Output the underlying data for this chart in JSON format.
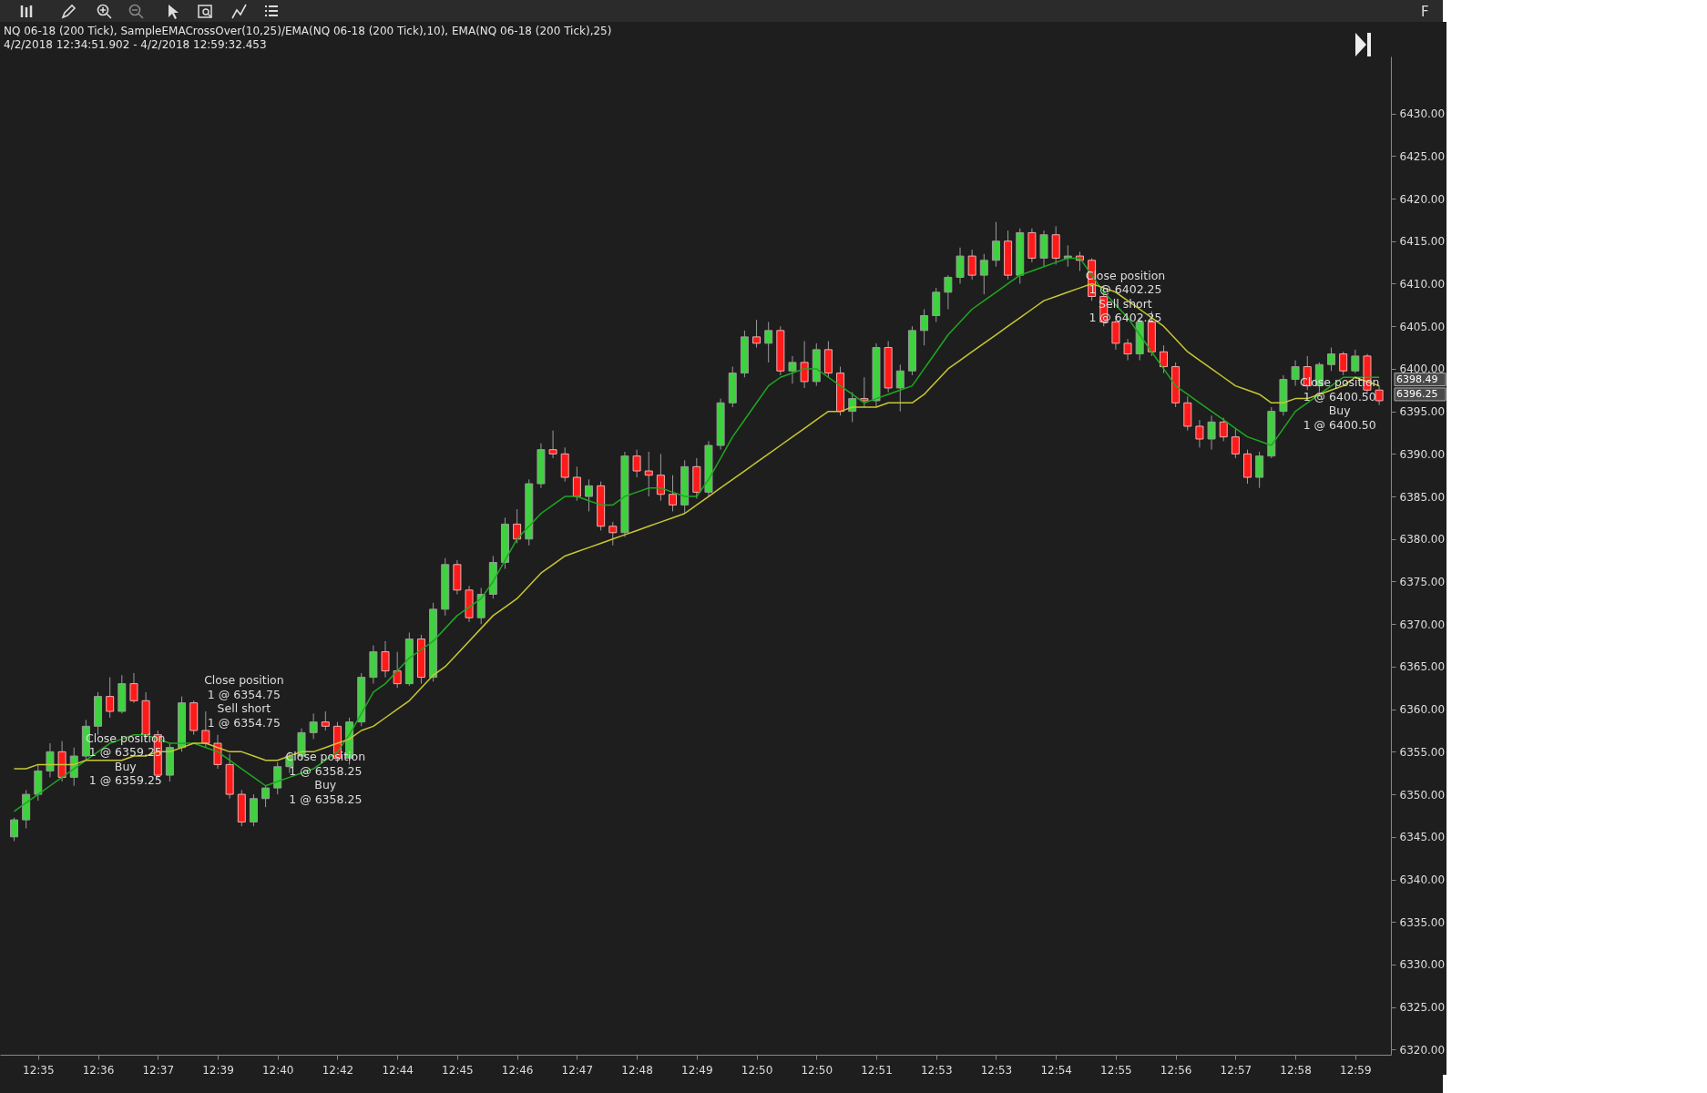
{
  "chart_data": {
    "type": "candlestick",
    "title": "NQ 06-18 (200 Tick), SampleEMACrossOver(10,25)/EMA(NQ 06-18 (200 Tick),10), EMA(NQ 06-18 (200 Tick),25)",
    "subtitle": "4/2/2018 12:34:51.902 - 4/2/2018 12:59:32.453",
    "categories": [
      null,
      null,
      "12:35",
      null,
      null,
      null,
      null,
      "12:36",
      null,
      null,
      null,
      null,
      "12:37",
      null,
      null,
      null,
      null,
      "12:39",
      null,
      null,
      null,
      null,
      "12:40",
      null,
      null,
      null,
      null,
      "12:42",
      null,
      null,
      null,
      null,
      "12:44",
      null,
      null,
      null,
      null,
      "12:45",
      null,
      null,
      null,
      null,
      "12:46",
      null,
      null,
      null,
      null,
      "12:47",
      null,
      null,
      null,
      null,
      "12:48",
      null,
      null,
      null,
      null,
      "12:49",
      null,
      null,
      null,
      null,
      "12:50",
      null,
      null,
      null,
      null,
      "12:50",
      null,
      null,
      null,
      null,
      "12:51",
      null,
      null,
      null,
      null,
      "12:53",
      null,
      null,
      null,
      null,
      "12:53",
      null,
      null,
      null,
      null,
      "12:54",
      null,
      null,
      null,
      null,
      "12:55",
      null,
      null,
      null,
      null,
      "12:56",
      null,
      null,
      null,
      null,
      "12:57",
      null,
      null,
      null,
      null,
      "12:58",
      null,
      null,
      null,
      null,
      "12:59",
      null,
      null
    ],
    "ohlc": [
      [
        6345.0,
        6347.25,
        6344.5,
        6347.0
      ],
      [
        6347.0,
        6350.5,
        6346.0,
        6350.0
      ],
      [
        6350.0,
        6353.5,
        6349.25,
        6352.75
      ],
      [
        6352.75,
        6356.0,
        6352.0,
        6355.0
      ],
      [
        6355.0,
        6356.25,
        6351.5,
        6352.0
      ],
      [
        6352.0,
        6355.5,
        6351.0,
        6354.5
      ],
      [
        6354.5,
        6358.75,
        6354.0,
        6358.0
      ],
      [
        6358.0,
        6362.0,
        6357.0,
        6361.5
      ],
      [
        6361.5,
        6363.75,
        6359.0,
        6359.75
      ],
      [
        6359.75,
        6364.0,
        6359.5,
        6363.0
      ],
      [
        6363.0,
        6364.25,
        6360.75,
        6361.0
      ],
      [
        6361.0,
        6362.0,
        6356.5,
        6357.0
      ],
      [
        6357.0,
        6357.5,
        6351.75,
        6352.25
      ],
      [
        6352.25,
        6356.0,
        6351.5,
        6355.5
      ],
      [
        6355.5,
        6361.5,
        6355.0,
        6360.75
      ],
      [
        6360.75,
        6361.0,
        6357.0,
        6357.5
      ],
      [
        6357.5,
        6359.75,
        6355.5,
        6356.0
      ],
      [
        6356.0,
        6357.0,
        6353.0,
        6353.5
      ],
      [
        6353.5,
        6354.75,
        6349.5,
        6350.0
      ],
      [
        6350.0,
        6350.5,
        6346.25,
        6346.75
      ],
      [
        6346.75,
        6350.0,
        6346.25,
        6349.5
      ],
      [
        6349.5,
        6351.0,
        6348.5,
        6350.75
      ],
      [
        6350.75,
        6353.75,
        6350.0,
        6353.25
      ],
      [
        6353.25,
        6355.0,
        6352.5,
        6354.5
      ],
      [
        6354.5,
        6357.75,
        6354.0,
        6357.25
      ],
      [
        6357.25,
        6359.5,
        6356.5,
        6358.5
      ],
      [
        6358.5,
        6359.75,
        6357.5,
        6358.0
      ],
      [
        6358.0,
        6358.5,
        6353.75,
        6354.25
      ],
      [
        6354.25,
        6359.0,
        6353.5,
        6358.5
      ],
      [
        6358.5,
        6364.25,
        6358.0,
        6363.75
      ],
      [
        6363.75,
        6367.5,
        6363.0,
        6366.75
      ],
      [
        6366.75,
        6368.0,
        6363.75,
        6364.5
      ],
      [
        6364.5,
        6366.75,
        6362.5,
        6363.0
      ],
      [
        6363.0,
        6369.0,
        6362.75,
        6368.25
      ],
      [
        6368.25,
        6368.75,
        6363.0,
        6363.75
      ],
      [
        6363.75,
        6372.5,
        6363.25,
        6371.75
      ],
      [
        6371.75,
        6377.75,
        6371.0,
        6377.0
      ],
      [
        6377.0,
        6377.5,
        6373.5,
        6374.0
      ],
      [
        6374.0,
        6374.5,
        6370.25,
        6370.75
      ],
      [
        6370.75,
        6374.25,
        6370.0,
        6373.5
      ],
      [
        6373.5,
        6378.0,
        6373.0,
        6377.25
      ],
      [
        6377.25,
        6382.5,
        6376.5,
        6381.75
      ],
      [
        6381.75,
        6383.5,
        6379.5,
        6380.0
      ],
      [
        6380.0,
        6387.0,
        6379.25,
        6386.5
      ],
      [
        6386.5,
        6391.25,
        6386.0,
        6390.5
      ],
      [
        6390.5,
        6392.75,
        6389.5,
        6390.0
      ],
      [
        6390.0,
        6390.75,
        6386.75,
        6387.25
      ],
      [
        6387.25,
        6388.5,
        6384.5,
        6385.0
      ],
      [
        6385.0,
        6387.0,
        6383.25,
        6386.25
      ],
      [
        6386.25,
        6386.75,
        6381.0,
        6381.5
      ],
      [
        6381.5,
        6382.0,
        6379.25,
        6380.75
      ],
      [
        6380.75,
        6390.25,
        6380.25,
        6389.75
      ],
      [
        6389.75,
        6390.5,
        6387.25,
        6388.0
      ],
      [
        6388.0,
        6390.25,
        6385.0,
        6387.5
      ],
      [
        6387.5,
        6390.0,
        6384.5,
        6385.25
      ],
      [
        6385.25,
        6387.5,
        6383.25,
        6384.0
      ],
      [
        6384.0,
        6389.25,
        6383.0,
        6388.5
      ],
      [
        6388.5,
        6389.5,
        6384.75,
        6385.5
      ],
      [
        6385.5,
        6391.5,
        6385.0,
        6391.0
      ],
      [
        6391.0,
        6396.5,
        6390.5,
        6396.0
      ],
      [
        6396.0,
        6400.25,
        6395.5,
        6399.5
      ],
      [
        6399.5,
        6404.5,
        6399.0,
        6403.75
      ],
      [
        6403.75,
        6405.75,
        6402.5,
        6403.0
      ],
      [
        6403.0,
        6405.5,
        6400.75,
        6404.5
      ],
      [
        6404.5,
        6405.0,
        6399.25,
        6399.75
      ],
      [
        6399.75,
        6401.5,
        6398.25,
        6400.75
      ],
      [
        6400.75,
        6403.25,
        6397.75,
        6398.5
      ],
      [
        6398.5,
        6403.0,
        6398.0,
        6402.25
      ],
      [
        6402.25,
        6403.25,
        6399.0,
        6399.5
      ],
      [
        6399.5,
        6400.25,
        6394.5,
        6395.0
      ],
      [
        6395.0,
        6397.25,
        6393.75,
        6396.5
      ],
      [
        6396.5,
        6399.0,
        6395.5,
        6396.25
      ],
      [
        6396.25,
        6403.0,
        6395.5,
        6402.5
      ],
      [
        6402.5,
        6403.25,
        6397.25,
        6397.75
      ],
      [
        6397.75,
        6400.5,
        6395.0,
        6399.75
      ],
      [
        6399.75,
        6405.0,
        6399.25,
        6404.5
      ],
      [
        6404.5,
        6407.0,
        6402.75,
        6406.25
      ],
      [
        6406.25,
        6409.5,
        6405.5,
        6409.0
      ],
      [
        6409.0,
        6411.0,
        6407.0,
        6410.75
      ],
      [
        6410.75,
        6414.25,
        6410.0,
        6413.25
      ],
      [
        6413.25,
        6414.0,
        6410.5,
        6411.0
      ],
      [
        6411.0,
        6413.5,
        6408.75,
        6412.75
      ],
      [
        6412.75,
        6417.25,
        6412.0,
        6415.0
      ],
      [
        6415.0,
        6416.25,
        6410.5,
        6411.0
      ],
      [
        6411.0,
        6416.5,
        6410.0,
        6416.0
      ],
      [
        6416.0,
        6416.5,
        6412.5,
        6413.0
      ],
      [
        6413.0,
        6416.25,
        6412.0,
        6415.75
      ],
      [
        6415.75,
        6416.75,
        6412.25,
        6413.0
      ],
      [
        6413.0,
        6414.5,
        6412.0,
        6413.25
      ],
      [
        6413.25,
        6413.75,
        6411.5,
        6412.75
      ],
      [
        6412.75,
        6413.0,
        6408.0,
        6408.5
      ],
      [
        6408.5,
        6409.75,
        6405.0,
        6405.5
      ],
      [
        6405.5,
        6406.25,
        6402.25,
        6403.0
      ],
      [
        6403.0,
        6403.5,
        6401.0,
        6401.75
      ],
      [
        6401.75,
        6406.0,
        6401.0,
        6405.5
      ],
      [
        6405.5,
        6406.75,
        6401.5,
        6402.0
      ],
      [
        6402.0,
        6402.75,
        6399.5,
        6400.25
      ],
      [
        6400.25,
        6400.75,
        6395.5,
        6396.0
      ],
      [
        6396.0,
        6396.75,
        6392.75,
        6393.25
      ],
      [
        6393.25,
        6394.0,
        6390.75,
        6391.75
      ],
      [
        6391.75,
        6394.5,
        6390.5,
        6393.75
      ],
      [
        6393.75,
        6394.25,
        6391.5,
        6392.0
      ],
      [
        6392.0,
        6393.0,
        6389.5,
        6390.0
      ],
      [
        6390.0,
        6390.5,
        6386.5,
        6387.25
      ],
      [
        6387.25,
        6390.25,
        6386.0,
        6389.75
      ],
      [
        6389.75,
        6395.5,
        6389.5,
        6395.0
      ],
      [
        6395.0,
        6399.25,
        6394.5,
        6398.75
      ],
      [
        6398.75,
        6401.0,
        6398.0,
        6400.25
      ],
      [
        6400.25,
        6401.5,
        6397.5,
        6398.0
      ],
      [
        6398.0,
        6400.75,
        6397.25,
        6400.5
      ],
      [
        6400.5,
        6402.5,
        6399.75,
        6401.75
      ],
      [
        6401.75,
        6402.0,
        6399.25,
        6399.75
      ],
      [
        6399.75,
        6402.25,
        6399.5,
        6401.5
      ],
      [
        6401.5,
        6401.75,
        6397.0,
        6397.5
      ],
      [
        6397.5,
        6398.0,
        6395.75,
        6396.25
      ]
    ],
    "series": [
      {
        "type": "line",
        "color": "#1fa81f",
        "values": [
          6348,
          6349,
          6350,
          6351,
          6352,
          6353,
          6354,
          6355,
          6356,
          6356.5,
          6357,
          6357,
          6356.5,
          6356,
          6356,
          6356,
          6355.5,
          6355,
          6354,
          6353,
          6352,
          6351,
          6351.5,
          6352,
          6352.5,
          6353,
          6354,
          6355,
          6357,
          6359.5,
          6362,
          6363,
          6364.5,
          6366,
          6367,
          6368,
          6369.5,
          6371,
          6372,
          6373,
          6375,
          6377.5,
          6380,
          6381.5,
          6383,
          6384,
          6385,
          6385,
          6384.5,
          6384,
          6384,
          6385,
          6385.5,
          6386,
          6386,
          6385.5,
          6385,
          6385,
          6387,
          6389.5,
          6392,
          6394,
          6396,
          6398,
          6399,
          6399.5,
          6400,
          6400,
          6399,
          6398,
          6397,
          6396,
          6396.5,
          6397,
          6397.5,
          6398,
          6400,
          6402,
          6404,
          6405.5,
          6407,
          6408,
          6409,
          6410,
          6411,
          6411.5,
          6412,
          6412.5,
          6413,
          6413,
          6411,
          6409,
          6407.5,
          6406,
          6404,
          6402,
          6400,
          6398,
          6397,
          6396,
          6395,
          6394,
          6393,
          6392,
          6391.5,
          6391,
          6393,
          6395,
          6396,
          6397,
          6398,
          6399,
          6399,
          6399,
          6399
        ]
      },
      {
        "type": "line",
        "color": "#c8c832",
        "values": [
          6353,
          6353,
          6353.5,
          6353.5,
          6353.5,
          6353.5,
          6354,
          6354,
          6354,
          6354,
          6354.5,
          6354.5,
          6355,
          6355,
          6355.5,
          6356,
          6356,
          6355.5,
          6355,
          6355,
          6354.5,
          6354,
          6354,
          6354.5,
          6355,
          6355,
          6355.5,
          6356,
          6356.5,
          6357.5,
          6358,
          6359,
          6360,
          6361,
          6362.5,
          6364,
          6365,
          6366.5,
          6368,
          6369.5,
          6371,
          6372,
          6373,
          6374.5,
          6376,
          6377,
          6378,
          6378.5,
          6379,
          6379.5,
          6380,
          6380.5,
          6381,
          6381.5,
          6382,
          6382.5,
          6383,
          6384,
          6385,
          6386,
          6387,
          6388,
          6389,
          6390,
          6391,
          6392,
          6393,
          6394,
          6395,
          6395,
          6395.5,
          6395.5,
          6395.5,
          6396,
          6396,
          6396,
          6397,
          6398.5,
          6400,
          6401,
          6402,
          6403,
          6404,
          6405,
          6406,
          6407,
          6408,
          6408.5,
          6409,
          6409.5,
          6410,
          6409.5,
          6409,
          6408,
          6407,
          6406,
          6405,
          6403.5,
          6402,
          6401,
          6400,
          6399,
          6398,
          6397.5,
          6397,
          6396,
          6396,
          6396.5,
          6396.5,
          6397,
          6397.5,
          6398,
          6399,
          6398.5,
          6398
        ]
      }
    ],
    "ylim": [
      6319.4,
      6436.7
    ],
    "yticks": [
      {
        "value": 6320,
        "label": "6320.00"
      },
      {
        "value": 6325,
        "label": "6325.00"
      },
      {
        "value": 6330,
        "label": "6330.00"
      },
      {
        "value": 6335,
        "label": "6335.00"
      },
      {
        "value": 6340,
        "label": "6340.00"
      },
      {
        "value": 6345,
        "label": "6345.00"
      },
      {
        "value": 6350,
        "label": "6350.00"
      },
      {
        "value": 6355,
        "label": "6355.00"
      },
      {
        "value": 6360,
        "label": "6360.00"
      },
      {
        "value": 6365,
        "label": "6365.00"
      },
      {
        "value": 6370,
        "label": "6370.00"
      },
      {
        "value": 6375,
        "label": "6375.00"
      },
      {
        "value": 6380,
        "label": "6380.00"
      },
      {
        "value": 6385,
        "label": "6385.00"
      },
      {
        "value": 6390,
        "label": "6390.00"
      },
      {
        "value": 6395,
        "label": "6395.00"
      },
      {
        "value": 6400,
        "label": "6400.00"
      },
      {
        "value": 6405,
        "label": "6405.00"
      },
      {
        "value": 6410,
        "label": "6410.00"
      },
      {
        "value": 6415,
        "label": "6415.00"
      },
      {
        "value": 6420,
        "label": "6420.00"
      },
      {
        "value": 6425,
        "label": "6425.00"
      },
      {
        "value": 6430,
        "label": "6430.00"
      }
    ],
    "annotations": [
      "Close position\n1 @ 6359.25\nBuy\n1 @ 6359.25",
      "Close position\n1 @ 6354.75\nSell short\n1 @ 6354.75",
      "Close position\n1 @ 6358.25\nBuy\n1 @ 6358.25",
      "Close position\n1 @ 6402.25\nSell short\n1 @ 6402.25",
      "Close position\n1 @ 6400.50\nBuy\n1 @ 6400.50",
      "6398.49",
      "6396.25",
      "F"
    ],
    "grid": false,
    "marker": "none"
  }
}
